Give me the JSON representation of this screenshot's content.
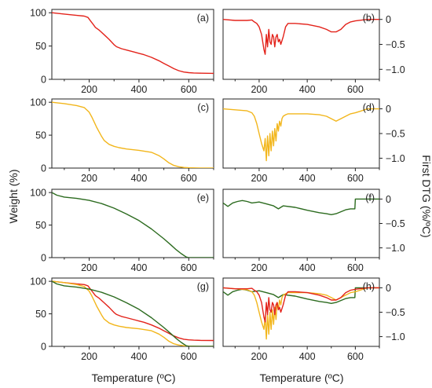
{
  "figure": {
    "ylabel_left": "Weight (%)",
    "ylabel_right": "First DTG (%/ºC)",
    "xlabel": "Temperature (ºC)"
  },
  "colors": {
    "red": "#e3231b",
    "yellow": "#f2b61c",
    "green": "#2c6b1f"
  },
  "chart_data": [
    {
      "id": "a",
      "label": "(a)",
      "type": "line",
      "side": "weight",
      "xlim": [
        50,
        700
      ],
      "ylim": [
        0,
        105
      ],
      "xticks": [
        200,
        400,
        600
      ],
      "yticks": [
        0,
        50,
        100
      ],
      "series": [
        {
          "color": "red",
          "x": [
            50,
            100,
            150,
            180,
            195,
            205,
            215,
            225,
            240,
            260,
            280,
            300,
            310,
            330,
            350,
            380,
            400,
            420,
            450,
            480,
            500,
            520,
            540,
            560,
            580,
            600,
            620,
            650,
            700
          ],
          "y": [
            100,
            98,
            96,
            95,
            93,
            88,
            83,
            78,
            74,
            67,
            60,
            52,
            49,
            46,
            44,
            41,
            39,
            37,
            33,
            28,
            24,
            20,
            16,
            13,
            11,
            10,
            9.5,
            9.2,
            9
          ]
        }
      ]
    },
    {
      "id": "b",
      "label": "(b)",
      "type": "line",
      "side": "dtg",
      "xlim": [
        50,
        700
      ],
      "ylim": [
        -1.2,
        0.2
      ],
      "xticks": [
        200,
        400,
        600
      ],
      "yticks": [
        0,
        -0.5,
        -1.0
      ],
      "series": [
        {
          "color": "red",
          "x": [
            50,
            100,
            150,
            170,
            180,
            190,
            200,
            210,
            215,
            220,
            225,
            230,
            235,
            240,
            245,
            250,
            255,
            260,
            265,
            270,
            275,
            280,
            285,
            290,
            300,
            310,
            320,
            350,
            400,
            450,
            480,
            500,
            520,
            540,
            560,
            580,
            600,
            650,
            700
          ],
          "y": [
            0,
            -0.02,
            -0.02,
            -0.01,
            -0.05,
            -0.08,
            -0.15,
            -0.3,
            -0.45,
            -0.6,
            -0.7,
            -0.3,
            -0.55,
            -0.2,
            -0.45,
            -0.5,
            -0.3,
            -0.35,
            -0.55,
            -0.35,
            -0.3,
            -0.45,
            -0.4,
            -0.5,
            -0.35,
            -0.15,
            -0.08,
            -0.08,
            -0.1,
            -0.15,
            -0.2,
            -0.25,
            -0.25,
            -0.2,
            -0.1,
            -0.05,
            -0.03,
            0,
            0
          ]
        }
      ]
    },
    {
      "id": "c",
      "label": "(c)",
      "type": "line",
      "side": "weight",
      "xlim": [
        50,
        700
      ],
      "ylim": [
        0,
        105
      ],
      "xticks": [
        200,
        400,
        600
      ],
      "yticks": [
        0,
        50,
        100
      ],
      "series": [
        {
          "color": "yellow",
          "x": [
            50,
            100,
            150,
            180,
            200,
            210,
            220,
            230,
            240,
            250,
            260,
            280,
            300,
            320,
            350,
            400,
            450,
            480,
            500,
            520,
            540,
            560,
            580,
            600,
            650,
            700
          ],
          "y": [
            100,
            98,
            95,
            92,
            85,
            78,
            70,
            62,
            55,
            48,
            42,
            36,
            33,
            31,
            29,
            27,
            24,
            19,
            14,
            8,
            4,
            2,
            1,
            0.5,
            0,
            0
          ]
        }
      ]
    },
    {
      "id": "d",
      "label": "(d)",
      "type": "line",
      "side": "dtg",
      "xlim": [
        50,
        700
      ],
      "ylim": [
        -1.2,
        0.2
      ],
      "xticks": [
        200,
        400,
        600
      ],
      "yticks": [
        0,
        -0.5,
        -1.0
      ],
      "series": [
        {
          "color": "yellow",
          "x": [
            50,
            100,
            150,
            170,
            180,
            190,
            200,
            210,
            220,
            225,
            230,
            235,
            240,
            245,
            250,
            255,
            260,
            265,
            270,
            275,
            280,
            285,
            290,
            295,
            300,
            310,
            320,
            350,
            400,
            450,
            480,
            500,
            520,
            540,
            560,
            580,
            600,
            620,
            650,
            700
          ],
          "y": [
            0,
            -0.02,
            -0.04,
            -0.08,
            -0.15,
            -0.3,
            -0.5,
            -0.7,
            -0.85,
            -0.6,
            -1.05,
            -0.55,
            -0.95,
            -0.5,
            -0.85,
            -0.45,
            -0.75,
            -0.4,
            -0.65,
            -0.3,
            -0.45,
            -0.25,
            -0.35,
            -0.2,
            -0.15,
            -0.12,
            -0.1,
            -0.1,
            -0.1,
            -0.12,
            -0.15,
            -0.2,
            -0.25,
            -0.2,
            -0.15,
            -0.1,
            -0.08,
            -0.05,
            0,
            0
          ]
        }
      ]
    },
    {
      "id": "e",
      "label": "(e)",
      "type": "line",
      "side": "weight",
      "xlim": [
        50,
        700
      ],
      "ylim": [
        0,
        105
      ],
      "xticks": [
        200,
        400,
        600
      ],
      "yticks": [
        0,
        50,
        100
      ],
      "series": [
        {
          "color": "green",
          "x": [
            50,
            70,
            100,
            150,
            200,
            250,
            300,
            350,
            400,
            450,
            500,
            530,
            550,
            570,
            590,
            600,
            650,
            700
          ],
          "y": [
            100,
            96,
            93,
            91,
            88,
            83,
            76,
            67,
            57,
            44,
            29,
            19,
            12,
            6,
            1,
            0,
            0,
            0
          ]
        }
      ]
    },
    {
      "id": "f",
      "label": "(f)",
      "type": "line",
      "side": "dtg",
      "xlim": [
        50,
        700
      ],
      "ylim": [
        -1.2,
        0.2
      ],
      "xticks": [
        200,
        400,
        600
      ],
      "yticks": [
        0,
        -0.5,
        -1.0
      ],
      "series": [
        {
          "color": "green",
          "x": [
            50,
            70,
            90,
            110,
            130,
            150,
            170,
            200,
            230,
            260,
            280,
            300,
            350,
            400,
            450,
            480,
            500,
            520,
            540,
            560,
            580,
            598,
            600,
            650,
            700
          ],
          "y": [
            -0.08,
            -0.15,
            -0.08,
            -0.05,
            -0.03,
            -0.05,
            -0.08,
            -0.06,
            -0.1,
            -0.14,
            -0.2,
            -0.14,
            -0.17,
            -0.23,
            -0.28,
            -0.3,
            -0.32,
            -0.3,
            -0.26,
            -0.22,
            -0.2,
            -0.2,
            0,
            0,
            0
          ]
        }
      ]
    },
    {
      "id": "g",
      "label": "(g)",
      "type": "line",
      "side": "weight",
      "xlim": [
        50,
        700
      ],
      "ylim": [
        0,
        105
      ],
      "xticks": [
        200,
        400,
        600
      ],
      "yticks": [
        0,
        50,
        100
      ],
      "series": [
        {
          "color": "red",
          "x": [
            50,
            100,
            150,
            180,
            195,
            205,
            215,
            225,
            240,
            260,
            280,
            300,
            310,
            330,
            350,
            380,
            400,
            420,
            450,
            480,
            500,
            520,
            540,
            560,
            580,
            600,
            620,
            650,
            700
          ],
          "y": [
            100,
            98,
            96,
            95,
            93,
            88,
            83,
            78,
            74,
            67,
            60,
            52,
            49,
            46,
            44,
            41,
            39,
            37,
            33,
            28,
            24,
            20,
            16,
            13,
            11,
            10,
            9.5,
            9.2,
            9
          ]
        },
        {
          "color": "yellow",
          "x": [
            50,
            100,
            150,
            180,
            200,
            210,
            220,
            230,
            240,
            250,
            260,
            280,
            300,
            320,
            350,
            400,
            450,
            480,
            500,
            520,
            540,
            560,
            580,
            600,
            650,
            700
          ],
          "y": [
            100,
            98,
            95,
            92,
            85,
            78,
            70,
            62,
            55,
            48,
            42,
            36,
            33,
            31,
            29,
            27,
            24,
            19,
            14,
            8,
            4,
            2,
            1,
            0.5,
            0,
            0
          ]
        },
        {
          "color": "green",
          "x": [
            50,
            70,
            100,
            150,
            200,
            250,
            300,
            350,
            400,
            450,
            500,
            530,
            550,
            570,
            590,
            600,
            650,
            700
          ],
          "y": [
            100,
            96,
            93,
            91,
            88,
            83,
            76,
            67,
            57,
            44,
            29,
            19,
            12,
            6,
            1,
            0,
            0,
            0
          ]
        }
      ]
    },
    {
      "id": "h",
      "label": "(h)",
      "type": "line",
      "side": "dtg",
      "xlim": [
        50,
        700
      ],
      "ylim": [
        -1.2,
        0.2
      ],
      "xticks": [
        200,
        400,
        600
      ],
      "yticks": [
        0,
        -0.5,
        -1.0
      ],
      "series": [
        {
          "color": "green",
          "x": [
            50,
            70,
            90,
            110,
            130,
            150,
            170,
            200,
            230,
            260,
            280,
            300,
            350,
            400,
            450,
            480,
            500,
            520,
            540,
            560,
            580,
            598,
            600,
            650,
            700
          ],
          "y": [
            -0.08,
            -0.15,
            -0.08,
            -0.05,
            -0.03,
            -0.05,
            -0.08,
            -0.06,
            -0.1,
            -0.14,
            -0.2,
            -0.14,
            -0.17,
            -0.23,
            -0.28,
            -0.3,
            -0.32,
            -0.3,
            -0.26,
            -0.22,
            -0.2,
            -0.2,
            0,
            0,
            0
          ]
        },
        {
          "color": "yellow",
          "x": [
            50,
            100,
            150,
            170,
            180,
            190,
            200,
            210,
            220,
            225,
            230,
            235,
            240,
            245,
            250,
            255,
            260,
            265,
            270,
            275,
            280,
            285,
            290,
            295,
            300,
            310,
            320,
            350,
            400,
            450,
            480,
            500,
            520,
            540,
            560,
            580,
            600,
            620,
            650,
            700
          ],
          "y": [
            0,
            -0.02,
            -0.04,
            -0.08,
            -0.15,
            -0.3,
            -0.5,
            -0.7,
            -0.85,
            -0.6,
            -1.05,
            -0.55,
            -0.95,
            -0.5,
            -0.85,
            -0.45,
            -0.75,
            -0.4,
            -0.65,
            -0.3,
            -0.45,
            -0.25,
            -0.35,
            -0.2,
            -0.15,
            -0.12,
            -0.1,
            -0.1,
            -0.1,
            -0.12,
            -0.15,
            -0.2,
            -0.25,
            -0.2,
            -0.15,
            -0.1,
            -0.08,
            -0.05,
            0,
            0
          ]
        },
        {
          "color": "red",
          "x": [
            50,
            100,
            150,
            170,
            180,
            190,
            200,
            210,
            215,
            220,
            225,
            230,
            235,
            240,
            245,
            250,
            255,
            260,
            265,
            270,
            275,
            280,
            285,
            290,
            300,
            310,
            320,
            350,
            400,
            450,
            480,
            500,
            520,
            540,
            560,
            580,
            600,
            650,
            700
          ],
          "y": [
            0,
            -0.02,
            -0.02,
            -0.01,
            -0.05,
            -0.08,
            -0.15,
            -0.3,
            -0.45,
            -0.6,
            -0.7,
            -0.3,
            -0.55,
            -0.2,
            -0.45,
            -0.5,
            -0.3,
            -0.35,
            -0.55,
            -0.35,
            -0.3,
            -0.45,
            -0.4,
            -0.5,
            -0.35,
            -0.15,
            -0.08,
            -0.08,
            -0.1,
            -0.15,
            -0.2,
            -0.25,
            -0.25,
            -0.2,
            -0.1,
            -0.05,
            -0.03,
            0,
            0
          ]
        }
      ]
    }
  ]
}
